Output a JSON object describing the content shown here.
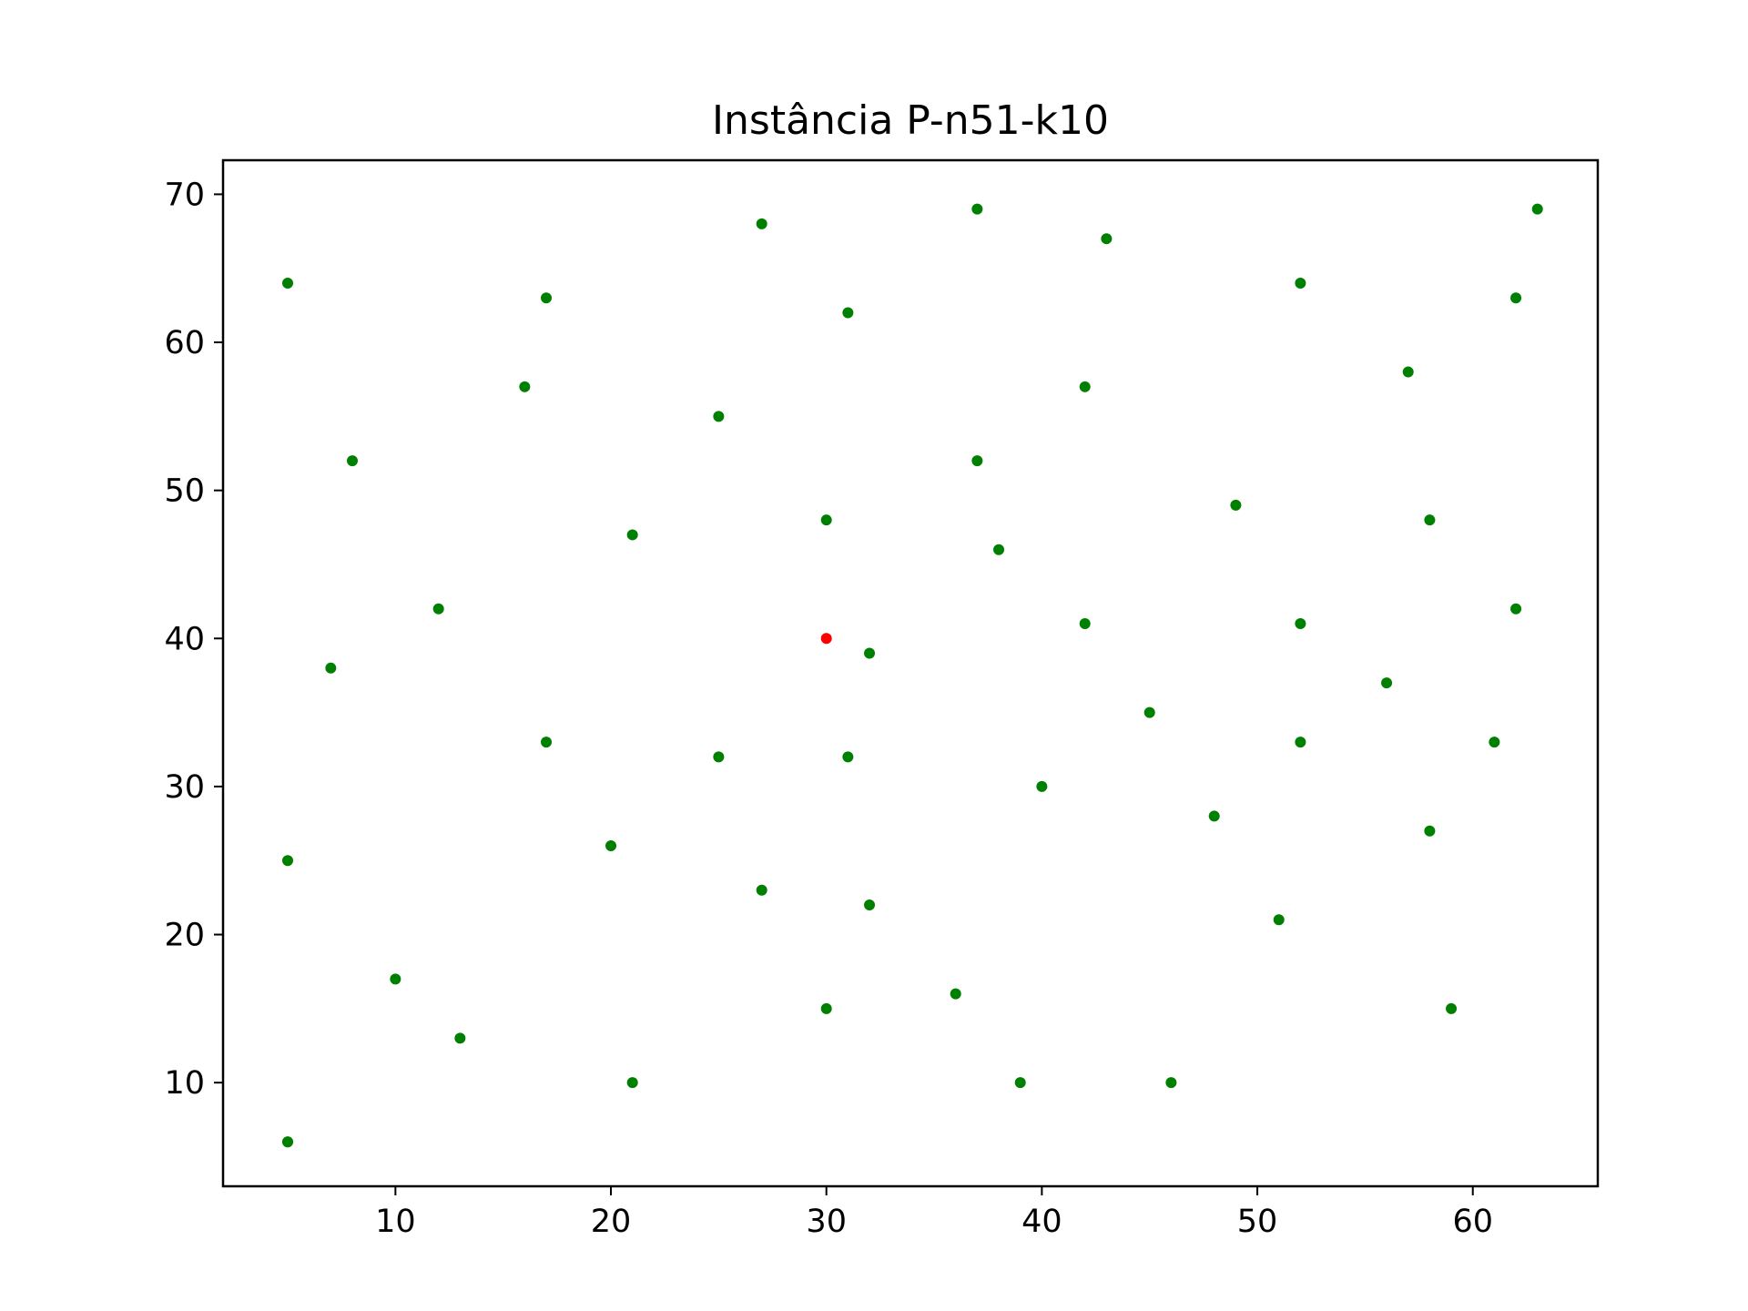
{
  "chart_data": {
    "type": "scatter",
    "title": "Instância P-n51-k10",
    "xlabel": "",
    "ylabel": "",
    "xlim": [
      2,
      65.8
    ],
    "ylim": [
      3,
      72.3
    ],
    "xticks": [
      10,
      20,
      30,
      40,
      50,
      60
    ],
    "yticks": [
      10,
      20,
      30,
      40,
      50,
      60,
      70
    ],
    "grid": false,
    "legend": "none",
    "series": [
      {
        "color": "#008000",
        "x": [
          5,
          5,
          5,
          5,
          7,
          8,
          10,
          12,
          13,
          16,
          17,
          17,
          20,
          21,
          21,
          25,
          25,
          27,
          27,
          30,
          30,
          31,
          31,
          32,
          32,
          36,
          37,
          37,
          38,
          39,
          40,
          42,
          42,
          43,
          45,
          46,
          48,
          49,
          51,
          52,
          52,
          52,
          56,
          57,
          58,
          58,
          59,
          61,
          62,
          62,
          63
        ],
        "y": [
          64,
          25,
          6,
          6,
          38,
          52,
          17,
          42,
          13,
          57,
          63,
          33,
          26,
          47,
          10,
          55,
          32,
          68,
          23,
          48,
          15,
          62,
          32,
          39,
          22,
          16,
          69,
          52,
          46,
          10,
          30,
          57,
          41,
          67,
          35,
          10,
          28,
          49,
          21,
          64,
          41,
          33,
          37,
          58,
          48,
          27,
          15,
          33,
          63,
          42,
          69
        ]
      },
      {
        "color": "#ff0000",
        "x": [
          30
        ],
        "y": [
          40
        ]
      }
    ]
  }
}
